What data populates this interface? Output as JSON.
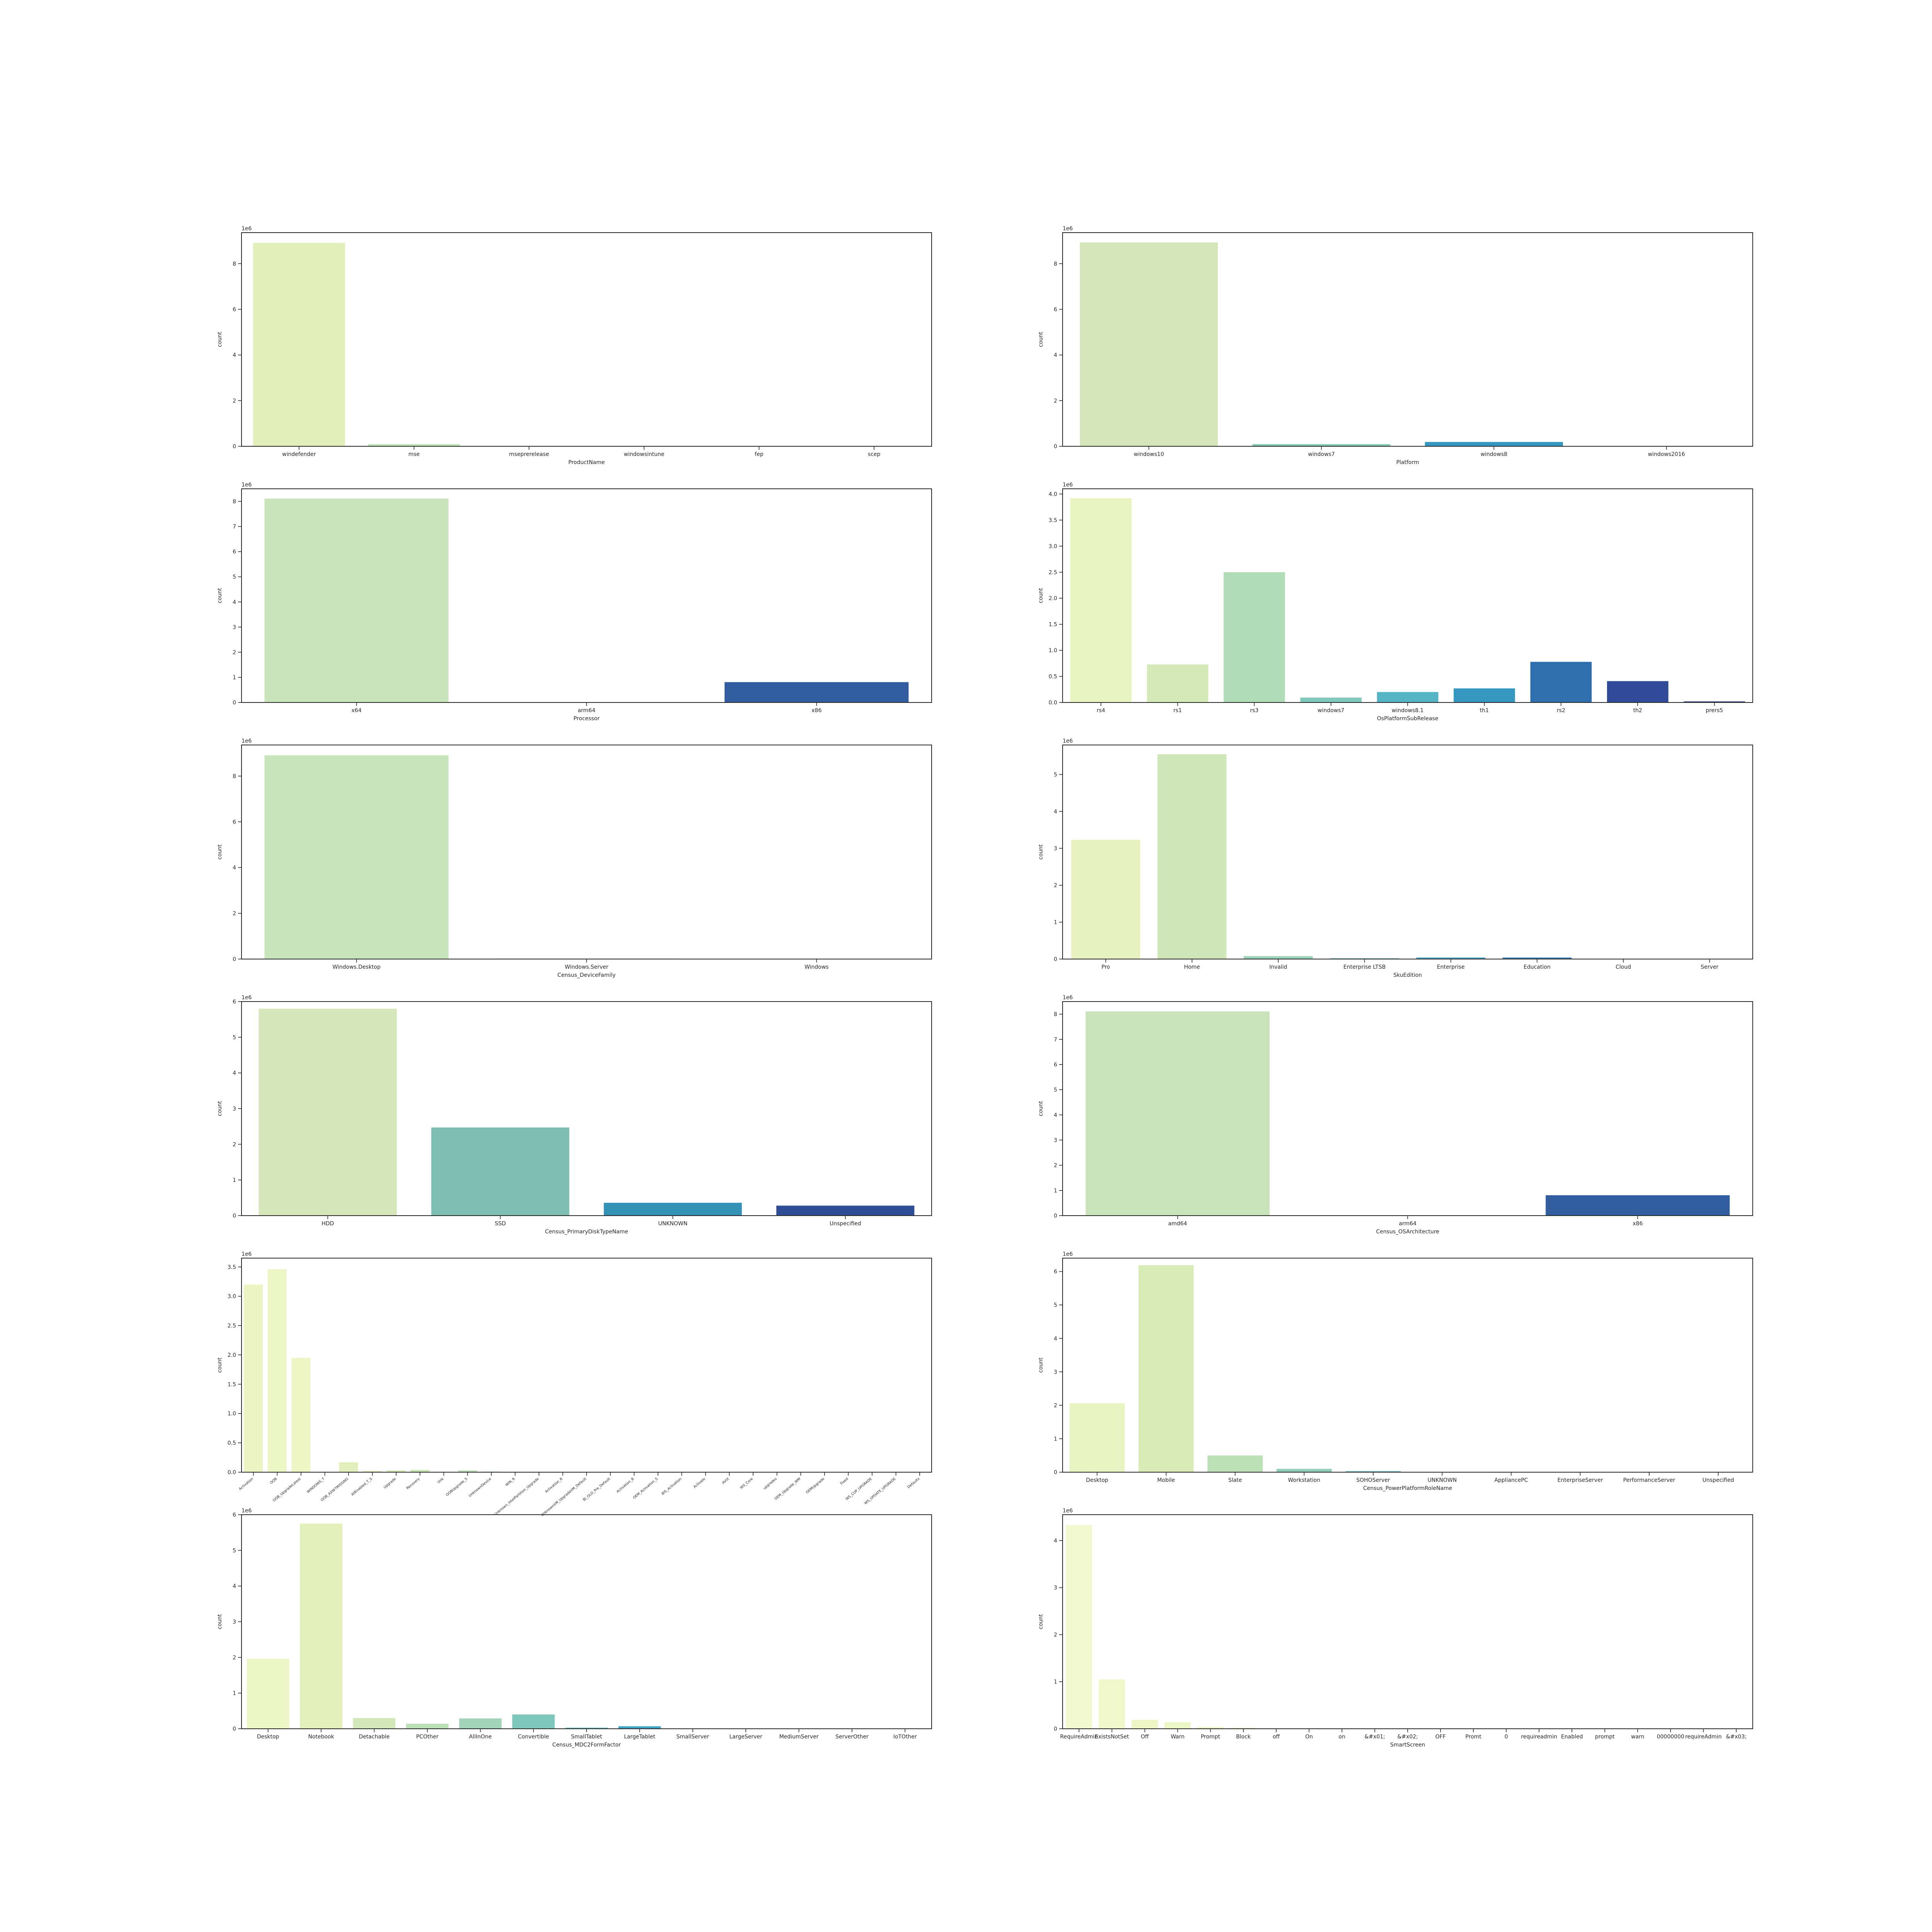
{
  "chart_data": [
    {
      "type": "bar",
      "xlabel": "ProductName",
      "ylabel": "count",
      "exponent_label": "1e6",
      "ylim": [
        0,
        9.36
      ],
      "yticks": [
        0,
        2,
        4,
        6,
        8
      ],
      "categories": [
        "windefender",
        "mse",
        "mseprerelease",
        "windowsintune",
        "fep",
        "scep"
      ],
      "values": [
        8.91,
        0.094,
        0.0,
        0.0,
        0.0,
        0.0
      ],
      "colors": [
        "#e2efbb",
        "#bfe4b5",
        "#86ccbb",
        "#4fb3c1",
        "#2b8cbe",
        "#2f5ca6"
      ]
    },
    {
      "type": "bar",
      "xlabel": "Platform",
      "ylabel": "count",
      "exponent_label": "1e6",
      "ylim": [
        0,
        9.36
      ],
      "yticks": [
        0,
        2,
        4,
        6,
        8
      ],
      "categories": [
        "windows10",
        "windows7",
        "windows8",
        "windows2016"
      ],
      "values": [
        8.93,
        0.093,
        0.19,
        0.015
      ],
      "colors": [
        "#d5e7b9",
        "#82c9b4",
        "#3596bf",
        "#2f4d95"
      ]
    },
    {
      "type": "bar",
      "xlabel": "Processor",
      "ylabel": "count",
      "exponent_label": "1e6",
      "ylim": [
        0,
        8.5
      ],
      "yticks": [
        0,
        1,
        2,
        3,
        4,
        5,
        6,
        7,
        8
      ],
      "categories": [
        "x64",
        "arm64",
        "x86"
      ],
      "values": [
        8.11,
        0.0,
        0.81
      ],
      "colors": [
        "#c9e4bb",
        "#7fc8b7",
        "#315c9f"
      ]
    },
    {
      "type": "bar",
      "xlabel": "OsPlatformSubRelease",
      "ylabel": "count",
      "exponent_label": "1e6",
      "ylim": [
        0,
        4.1
      ],
      "yticks": [
        0,
        0.5,
        1.0,
        1.5,
        2.0,
        2.5,
        3.0,
        3.5,
        4.0
      ],
      "categories": [
        "rs4",
        "rs1",
        "rs3",
        "windows7",
        "windows8.1",
        "th1",
        "rs2",
        "th2",
        "prers5"
      ],
      "values": [
        3.92,
        0.73,
        2.5,
        0.094,
        0.2,
        0.27,
        0.78,
        0.41,
        0.02
      ],
      "colors": [
        "#eaf3c2",
        "#d4e9b8",
        "#b1dcb8",
        "#7fc8bb",
        "#56b3c3",
        "#3597c0",
        "#2f6faf",
        "#304b9a",
        "#253184"
      ]
    },
    {
      "type": "bar",
      "xlabel": "Census_DeviceFamily",
      "ylabel": "count",
      "exponent_label": "1e6",
      "ylim": [
        0,
        9.36
      ],
      "yticks": [
        0,
        2,
        4,
        6,
        8
      ],
      "categories": [
        "Windows.Desktop",
        "Windows.Server",
        "Windows"
      ],
      "values": [
        8.91,
        0.02,
        0.0
      ],
      "colors": [
        "#c8e4ba",
        "#7fc8b7",
        "#315c9f"
      ]
    },
    {
      "type": "bar",
      "xlabel": "SkuEdition",
      "ylabel": "count",
      "exponent_label": "1e6",
      "ylim": [
        0,
        5.8
      ],
      "yticks": [
        0,
        1,
        2,
        3,
        4,
        5
      ],
      "categories": [
        "Pro",
        "Home",
        "Invalid",
        "Enterprise LTSB",
        "Enterprise",
        "Education",
        "Cloud",
        "Server"
      ],
      "values": [
        3.23,
        5.55,
        0.08,
        0.02,
        0.04,
        0.04,
        0.005,
        0.002
      ],
      "colors": [
        "#e8f2c0",
        "#cfe7b8",
        "#9cd4b8",
        "#62bbc1",
        "#3a9cc1",
        "#2e75b1",
        "#2f4f9c",
        "#283a8a"
      ]
    },
    {
      "type": "bar",
      "xlabel": "Census_PrimaryDiskTypeName",
      "ylabel": "count",
      "exponent_label": "1e6",
      "ylim": [
        0,
        6.0
      ],
      "yticks": [
        0,
        1,
        2,
        3,
        4,
        5,
        6
      ],
      "categories": [
        "HDD",
        "SSD",
        "UNKNOWN",
        "Unspecified"
      ],
      "values": [
        5.8,
        2.47,
        0.36,
        0.28
      ],
      "colors": [
        "#d5e7b9",
        "#7fbfb3",
        "#3592b7",
        "#2f4d95"
      ]
    },
    {
      "type": "bar",
      "xlabel": "Census_OSArchitecture",
      "ylabel": "count",
      "exponent_label": "1e6",
      "ylim": [
        0,
        8.5
      ],
      "yticks": [
        0,
        1,
        2,
        3,
        4,
        5,
        6,
        7,
        8
      ],
      "categories": [
        "amd64",
        "arm64",
        "x86"
      ],
      "values": [
        8.11,
        0.0,
        0.81
      ],
      "colors": [
        "#c9e4bb",
        "#7fc8b7",
        "#325e9f"
      ]
    },
    {
      "type": "bar",
      "xlabel": "",
      "ylabel": "count",
      "exponent_label": "1e6",
      "ylim": [
        0,
        3.65
      ],
      "yticks": [
        0,
        0.5,
        1.0,
        1.5,
        2.0,
        2.5,
        3.0,
        3.5
      ],
      "categories": [
        "Activation",
        "OOB",
        "OOB_UpgradeLatest",
        "WINDOWS_T",
        "OOB_AXW7MISSING",
        "AllEnabled_T_S",
        "Upgrade",
        "Recovery",
        "Unk",
        "OOBUpgrade_S",
        "UnknownDevice",
        "WIN_R",
        "Unknown_IntelPartition_Upgrade",
        "Activation_R",
        "UnknownVM_UpgradeVM_Default",
        "BI_OLD_Pre_Default",
        "Activation_B",
        "OEM_Activation_S",
        "BIS_Activation",
        "Activate",
        "AVIX",
        "WS_Core",
        "upgrades",
        "OEM_Upgrade_WM",
        "OEMUpgrade",
        "Fixed",
        "WS_CUP_UPGRADE",
        "WS_UPDATE_UPGRADE",
        "Defaults"
      ],
      "values": [
        3.2,
        3.46,
        1.95,
        0.006,
        0.17,
        0.02,
        0.03,
        0.04,
        0.008,
        0.03,
        0.01,
        0.004,
        0.002,
        0.002,
        0.001,
        0.001,
        0.001,
        0.001,
        0.001,
        0.001,
        0.001,
        0.001,
        0.001,
        0.001,
        0.001,
        0.001,
        0.001,
        0.001,
        0.001
      ],
      "colors": [
        "#ecf4c4",
        "#ebf5c5",
        "#eef6c7",
        "#eaf4c4",
        "#e3f0bd",
        "#dcedbb",
        "#d6eab9",
        "#cfe7b8",
        "#c8e4b7",
        "#bfe0b7",
        "#b4dbb7",
        "#a6d6b9",
        "#96d0ba",
        "#86cabb",
        "#76c3bd",
        "#68bcbf",
        "#5bb4c1",
        "#4fabc3",
        "#45a2c4",
        "#3b97c3",
        "#348bbf",
        "#317ebb",
        "#3071b5",
        "#3065ae",
        "#3059a6",
        "#304e9e",
        "#2f4496",
        "#2b3b8d",
        "#263484"
      ]
    },
    {
      "type": "bar",
      "xlabel": "Census_PowerPlatformRoleName",
      "ylabel": "count",
      "exponent_label": "1e6",
      "ylim": [
        0,
        6.4
      ],
      "yticks": [
        0,
        1,
        2,
        3,
        4,
        5,
        6
      ],
      "categories": [
        "Desktop",
        "Mobile",
        "Slate",
        "Workstation",
        "SOHOServer",
        "UNKNOWN",
        "AppliancePC",
        "EnterpriseServer",
        "PerformanceServer",
        "Unspecified"
      ],
      "values": [
        2.06,
        6.19,
        0.5,
        0.1,
        0.03,
        0.01,
        0.002,
        0.002,
        0.001,
        0.001
      ],
      "colors": [
        "#eaf4c2",
        "#d9ecb8",
        "#bde1b6",
        "#8fcfb9",
        "#63bcc1",
        "#3fa2c4",
        "#2f7db6",
        "#305aa5",
        "#2c4090",
        "#22307f"
      ]
    },
    {
      "type": "bar",
      "xlabel": "Census_MDC2FormFactor",
      "ylabel": "count",
      "exponent_label": "1e6",
      "ylim": [
        0,
        6.0
      ],
      "yticks": [
        0,
        1,
        2,
        3,
        4,
        5,
        6
      ],
      "categories": [
        "Desktop",
        "Notebook",
        "Detachable",
        "PCOther",
        "AllInOne",
        "Convertible",
        "SmallTablet",
        "LargeTablet",
        "SmallServer",
        "LargeServer",
        "MediumServer",
        "ServerOther",
        "IoTOther"
      ],
      "values": [
        1.96,
        5.75,
        0.3,
        0.14,
        0.29,
        0.4,
        0.03,
        0.07,
        0.005,
        0.001,
        0.001,
        0.001,
        0.0
      ],
      "colors": [
        "#edf6c6",
        "#e3f0bc",
        "#d3e8b8",
        "#bde0b7",
        "#a1d4b9",
        "#7fc7bb",
        "#5eb8c1",
        "#40a3c4",
        "#3088bd",
        "#306db2",
        "#3053a3",
        "#2b3d8f",
        "#232f80"
      ]
    },
    {
      "type": "bar",
      "xlabel": "SmartScreen",
      "ylabel": "count",
      "exponent_label": "1e6",
      "ylim": [
        0,
        4.55
      ],
      "yticks": [
        0,
        1,
        2,
        3,
        4
      ],
      "categories": [
        "RequireAdmin",
        "ExistsNotSet",
        "Off",
        "Warn",
        "Prompt",
        "Block",
        "off",
        "On",
        "on",
        "&#x01;",
        "&#x02;",
        "OFF",
        "Promt",
        "0",
        "requireadmin",
        "Enabled",
        "prompt",
        "warn",
        "00000000",
        "requireAdmin",
        "&#x03;"
      ],
      "values": [
        4.33,
        1.05,
        0.19,
        0.14,
        0.035,
        0.022,
        0.001,
        0.001,
        0.001,
        0.0005,
        0.0005,
        0.0005,
        0.0005,
        0.0005,
        0.0005,
        0.0005,
        0.0005,
        0.0005,
        0.0005,
        0.0005,
        0.0005
      ],
      "colors": [
        "#f2f8cf",
        "#f0f7cb",
        "#eef6c8",
        "#ebf5c5",
        "#e8f3c2",
        "#e4f1bf",
        "#dfefbd",
        "#daecbb",
        "#d4e9b9",
        "#cde6b8",
        "#c4e2b7",
        "#badeb7",
        "#add9b8",
        "#a0d4b9",
        "#90cdbb",
        "#80c7bc",
        "#70c0be",
        "#62b8bf",
        "#55b0c1",
        "#4aa8c3",
        "#409fc3"
      ]
    }
  ]
}
